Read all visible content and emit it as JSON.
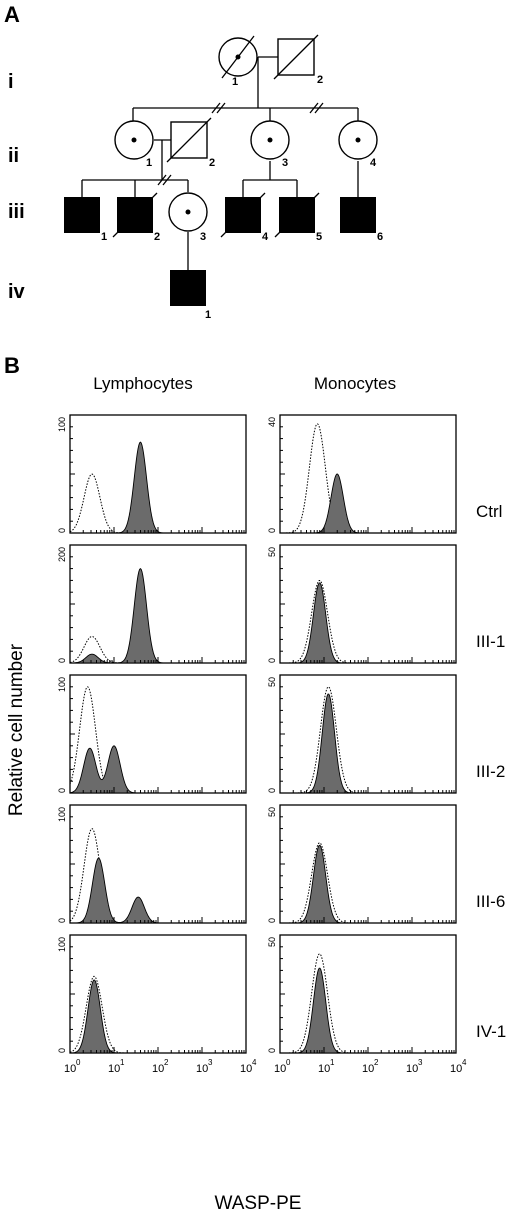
{
  "panel_a": {
    "letter": "A",
    "generations": [
      "i",
      "ii",
      "iii",
      "iv"
    ],
    "individuals": {
      "i1": "1",
      "i2": "2",
      "ii1": "1",
      "ii2": "2",
      "ii3": "3",
      "ii4": "4",
      "iii1": "1",
      "iii2": "2",
      "iii3": "3",
      "iii4": "4",
      "iii5": "5",
      "iii6": "6",
      "iv1": "1"
    }
  },
  "panel_b": {
    "letter": "B",
    "col_titles": [
      "Lymphocytes",
      "Monocytes"
    ],
    "row_labels": [
      "Ctrl",
      "III-1",
      "III-2",
      "III-6",
      "IV-1"
    ],
    "y_title": "Relative cell number",
    "x_title": "WASP-PE",
    "y_max": {
      "lymphocytes": [
        "100",
        "200",
        "100",
        "100",
        "100"
      ],
      "monocytes": [
        "40",
        "50",
        "50",
        "50",
        "50"
      ]
    },
    "y_zero": "0",
    "x_tick_base": "10",
    "x_tick_exponents": [
      "0",
      "1",
      "2",
      "3",
      "4"
    ]
  },
  "chart_data": [
    {
      "type": "area",
      "cell": "Lymphocytes",
      "sample": "Ctrl",
      "ylim": [
        0,
        100
      ],
      "series": [
        {
          "style": "dotted",
          "peaks": [
            {
              "log10_x": 0.5,
              "height": 50
            }
          ]
        },
        {
          "style": "filled",
          "peaks": [
            {
              "log10_x": 1.6,
              "height": 77
            }
          ]
        }
      ]
    },
    {
      "type": "area",
      "cell": "Monocytes",
      "sample": "Ctrl",
      "ylim": [
        0,
        40
      ],
      "series": [
        {
          "style": "dotted",
          "peaks": [
            {
              "log10_x": 0.85,
              "height": 37
            }
          ]
        },
        {
          "style": "filled",
          "peaks": [
            {
              "log10_x": 1.3,
              "height": 20
            }
          ]
        }
      ]
    },
    {
      "type": "area",
      "cell": "Lymphocytes",
      "sample": "III-1",
      "ylim": [
        0,
        200
      ],
      "series": [
        {
          "style": "dotted",
          "peaks": [
            {
              "log10_x": 0.5,
              "height": 45
            }
          ]
        },
        {
          "style": "filled",
          "peaks": [
            {
              "log10_x": 0.5,
              "height": 15
            },
            {
              "log10_x": 1.6,
              "height": 160
            }
          ]
        }
      ]
    },
    {
      "type": "area",
      "cell": "Monocytes",
      "sample": "III-1",
      "ylim": [
        0,
        50
      ],
      "series": [
        {
          "style": "dotted",
          "peaks": [
            {
              "log10_x": 0.9,
              "height": 35
            }
          ]
        },
        {
          "style": "filled",
          "peaks": [
            {
              "log10_x": 0.9,
              "height": 34
            }
          ]
        }
      ]
    },
    {
      "type": "area",
      "cell": "Lymphocytes",
      "sample": "III-2",
      "ylim": [
        0,
        100
      ],
      "series": [
        {
          "style": "dotted",
          "peaks": [
            {
              "log10_x": 0.4,
              "height": 90
            }
          ]
        },
        {
          "style": "filled",
          "peaks": [
            {
              "log10_x": 0.45,
              "height": 38
            },
            {
              "log10_x": 1.0,
              "height": 40
            }
          ]
        }
      ]
    },
    {
      "type": "area",
      "cell": "Monocytes",
      "sample": "III-2",
      "ylim": [
        0,
        50
      ],
      "series": [
        {
          "style": "dotted",
          "peaks": [
            {
              "log10_x": 1.1,
              "height": 45
            }
          ]
        },
        {
          "style": "filled",
          "peaks": [
            {
              "log10_x": 1.1,
              "height": 42
            }
          ]
        }
      ]
    },
    {
      "type": "area",
      "cell": "Lymphocytes",
      "sample": "III-6",
      "ylim": [
        0,
        100
      ],
      "series": [
        {
          "style": "dotted",
          "peaks": [
            {
              "log10_x": 0.5,
              "height": 80
            }
          ]
        },
        {
          "style": "filled",
          "peaks": [
            {
              "log10_x": 0.65,
              "height": 55
            },
            {
              "log10_x": 1.55,
              "height": 22
            }
          ]
        }
      ]
    },
    {
      "type": "area",
      "cell": "Monocytes",
      "sample": "III-6",
      "ylim": [
        0,
        50
      ],
      "series": [
        {
          "style": "dotted",
          "peaks": [
            {
              "log10_x": 0.9,
              "height": 34
            }
          ]
        },
        {
          "style": "filled",
          "peaks": [
            {
              "log10_x": 0.9,
              "height": 33
            }
          ]
        }
      ]
    },
    {
      "type": "area",
      "cell": "Lymphocytes",
      "sample": "IV-1",
      "ylim": [
        0,
        100
      ],
      "series": [
        {
          "style": "dotted",
          "peaks": [
            {
              "log10_x": 0.55,
              "height": 65
            }
          ]
        },
        {
          "style": "filled",
          "peaks": [
            {
              "log10_x": 0.55,
              "height": 62
            }
          ]
        }
      ]
    },
    {
      "type": "area",
      "cell": "Monocytes",
      "sample": "IV-1",
      "ylim": [
        0,
        50
      ],
      "series": [
        {
          "style": "dotted",
          "peaks": [
            {
              "log10_x": 0.9,
              "height": 42
            }
          ]
        },
        {
          "style": "filled",
          "peaks": [
            {
              "log10_x": 0.9,
              "height": 36
            }
          ]
        }
      ]
    }
  ]
}
